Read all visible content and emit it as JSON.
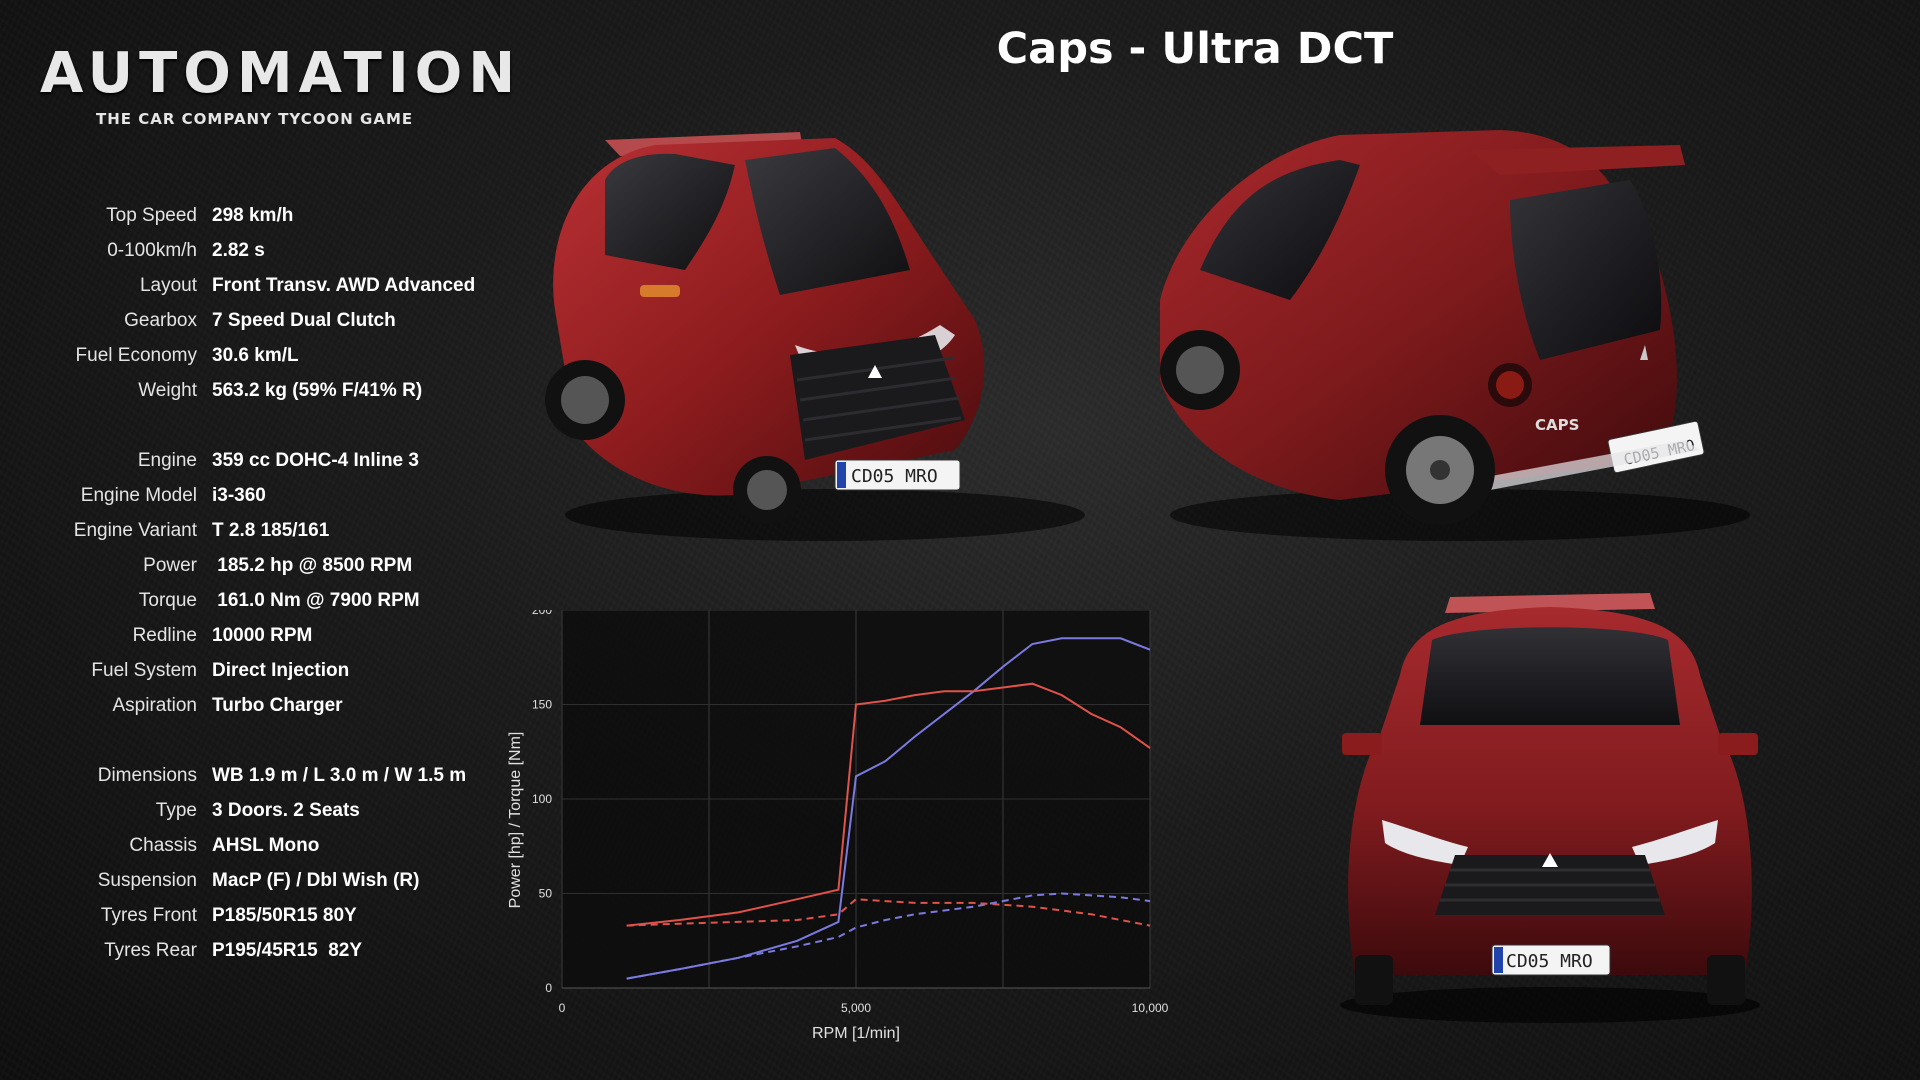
{
  "logo": {
    "word": "AUTOMATION",
    "tagline": "THE CAR COMPANY TYCOON GAME"
  },
  "title": "Caps - Ultra DCT",
  "specs": {
    "group1": [
      {
        "label": "Top Speed",
        "value": "298 km/h"
      },
      {
        "label": "0-100km/h",
        "value": "2.82 s"
      },
      {
        "label": "Layout",
        "value": "Front Transv. AWD Advanced"
      },
      {
        "label": "Gearbox",
        "value": "7 Speed Dual Clutch"
      },
      {
        "label": "Fuel Economy",
        "value": "30.6 km/L"
      },
      {
        "label": "Weight",
        "value": "563.2 kg (59% F/41% R)"
      }
    ],
    "group2": [
      {
        "label": "Engine",
        "value": "359 cc DOHC-4 Inline 3"
      },
      {
        "label": "Engine Model",
        "value": "i3-360"
      },
      {
        "label": "Engine Variant",
        "value": "T 2.8 185/161"
      },
      {
        "label": "Power",
        "value": " 185.2 hp @ 8500 RPM"
      },
      {
        "label": "Torque",
        "value": " 161.0 Nm @ 7900 RPM"
      },
      {
        "label": "Redline",
        "value": "10000 RPM"
      },
      {
        "label": "Fuel System",
        "value": "Direct Injection"
      },
      {
        "label": "Aspiration",
        "value": "Turbo Charger"
      }
    ],
    "group3": [
      {
        "label": "Dimensions",
        "value": "WB 1.9 m / L 3.0 m / W 1.5 m"
      },
      {
        "label": "Type",
        "value": "3 Doors. 2 Seats"
      },
      {
        "label": "Chassis",
        "value": "AHSL Mono"
      },
      {
        "label": "Suspension",
        "value": "MacP (F) / Dbl Wish (R)"
      },
      {
        "label": "Tyres Front",
        "value": "P185/50R15 80Y"
      },
      {
        "label": "Tyres Rear",
        "value": "P195/45R15  82Y"
      }
    ]
  },
  "plates": {
    "front": "CD05 MRO",
    "rear": "CD05 MRO",
    "front2": "CD05 MRO",
    "badge": "CAPS"
  },
  "colors": {
    "car_red": "#8e1c1e",
    "power_line": "#7a7ae0",
    "torque_line": "#e0524a"
  },
  "chart_data": {
    "type": "line",
    "xlabel": "RPM [1/min]",
    "ylabel": "Power [hp] / Torque [Nm]",
    "xlim": [
      0,
      10000
    ],
    "ylim": [
      0,
      200
    ],
    "x_ticks": [
      0,
      5000,
      10000
    ],
    "x_tick_labels": [
      "0",
      "5,000",
      "10,000"
    ],
    "y_ticks": [
      0,
      50,
      100,
      150,
      200
    ],
    "grid": true,
    "series": [
      {
        "name": "",
        "color": "#7a7ae0",
        "dash": false,
        "x": [
          1100,
          2000,
          3000,
          4000,
          4700,
          5000,
          5500,
          6000,
          6500,
          7000,
          7500,
          8000,
          8500,
          9000,
          9500,
          10000
        ],
        "y": [
          5,
          10,
          16,
          25,
          35,
          112,
          120,
          133,
          145,
          157,
          170,
          182,
          185,
          185,
          185,
          179
        ]
      },
      {
        "name": "",
        "color": "#e0524a",
        "dash": false,
        "x": [
          1100,
          2000,
          3000,
          4000,
          4700,
          5000,
          5500,
          6000,
          6500,
          7000,
          7500,
          8000,
          8500,
          9000,
          9500,
          10000
        ],
        "y": [
          33,
          36,
          40,
          47,
          52,
          150,
          152,
          155,
          157,
          157,
          159,
          161,
          155,
          145,
          138,
          127
        ]
      },
      {
        "name": "",
        "color": "#7a7ae0",
        "dash": true,
        "x": [
          1100,
          2000,
          3000,
          4000,
          4700,
          5000,
          5500,
          6000,
          6500,
          7000,
          7500,
          8000,
          8500,
          9000,
          9500,
          10000
        ],
        "y": [
          5,
          10,
          16,
          22,
          27,
          32,
          36,
          39,
          41,
          43,
          46,
          49,
          50,
          49,
          48,
          46
        ]
      },
      {
        "name": "",
        "color": "#e0524a",
        "dash": true,
        "x": [
          1100,
          2000,
          3000,
          4000,
          4700,
          5000,
          5500,
          6000,
          6500,
          7000,
          7500,
          8000,
          8500,
          9000,
          9500,
          10000
        ],
        "y": [
          33,
          34,
          35,
          36,
          39,
          47,
          46,
          45,
          45,
          45,
          44,
          43,
          41,
          39,
          36,
          33
        ]
      }
    ]
  }
}
